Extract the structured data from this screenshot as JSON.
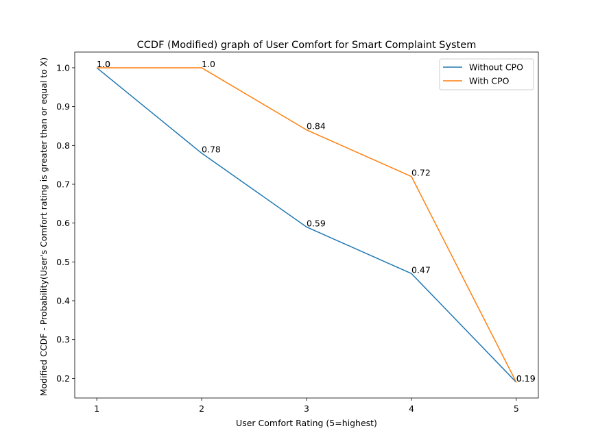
{
  "chart_data": {
    "type": "line",
    "title": "CCDF (Modified) graph of User Comfort for Smart Complaint System",
    "xlabel": "User Comfort Rating (5=highest)",
    "ylabel": "Modified CCDF - Probability(User's Comfort rating is greater than or equal to X)",
    "x": [
      1,
      2,
      3,
      4,
      5
    ],
    "xlim": [
      0.79,
      5.21
    ],
    "ylim": [
      0.1495,
      1.0405
    ],
    "xticks": [
      "1",
      "2",
      "3",
      "4",
      "5"
    ],
    "yticks": [
      "0.2",
      "0.3",
      "0.4",
      "0.5",
      "0.6",
      "0.7",
      "0.8",
      "0.9",
      "1.0"
    ],
    "grid": false,
    "legend_position": "top-right",
    "series": [
      {
        "name": "Without CPO",
        "color": "#1f77b4",
        "values": [
          1.0,
          0.78,
          0.59,
          0.47,
          0.19
        ],
        "labels": [
          "1.0",
          "0.78",
          "0.59",
          "0.47",
          "0.19"
        ]
      },
      {
        "name": "With CPO",
        "color": "#ff7f0e",
        "values": [
          1.0,
          1.0,
          0.84,
          0.72,
          0.19
        ],
        "labels": [
          "1.0",
          "1.0",
          "0.84",
          "0.72",
          "0.19"
        ]
      }
    ]
  }
}
